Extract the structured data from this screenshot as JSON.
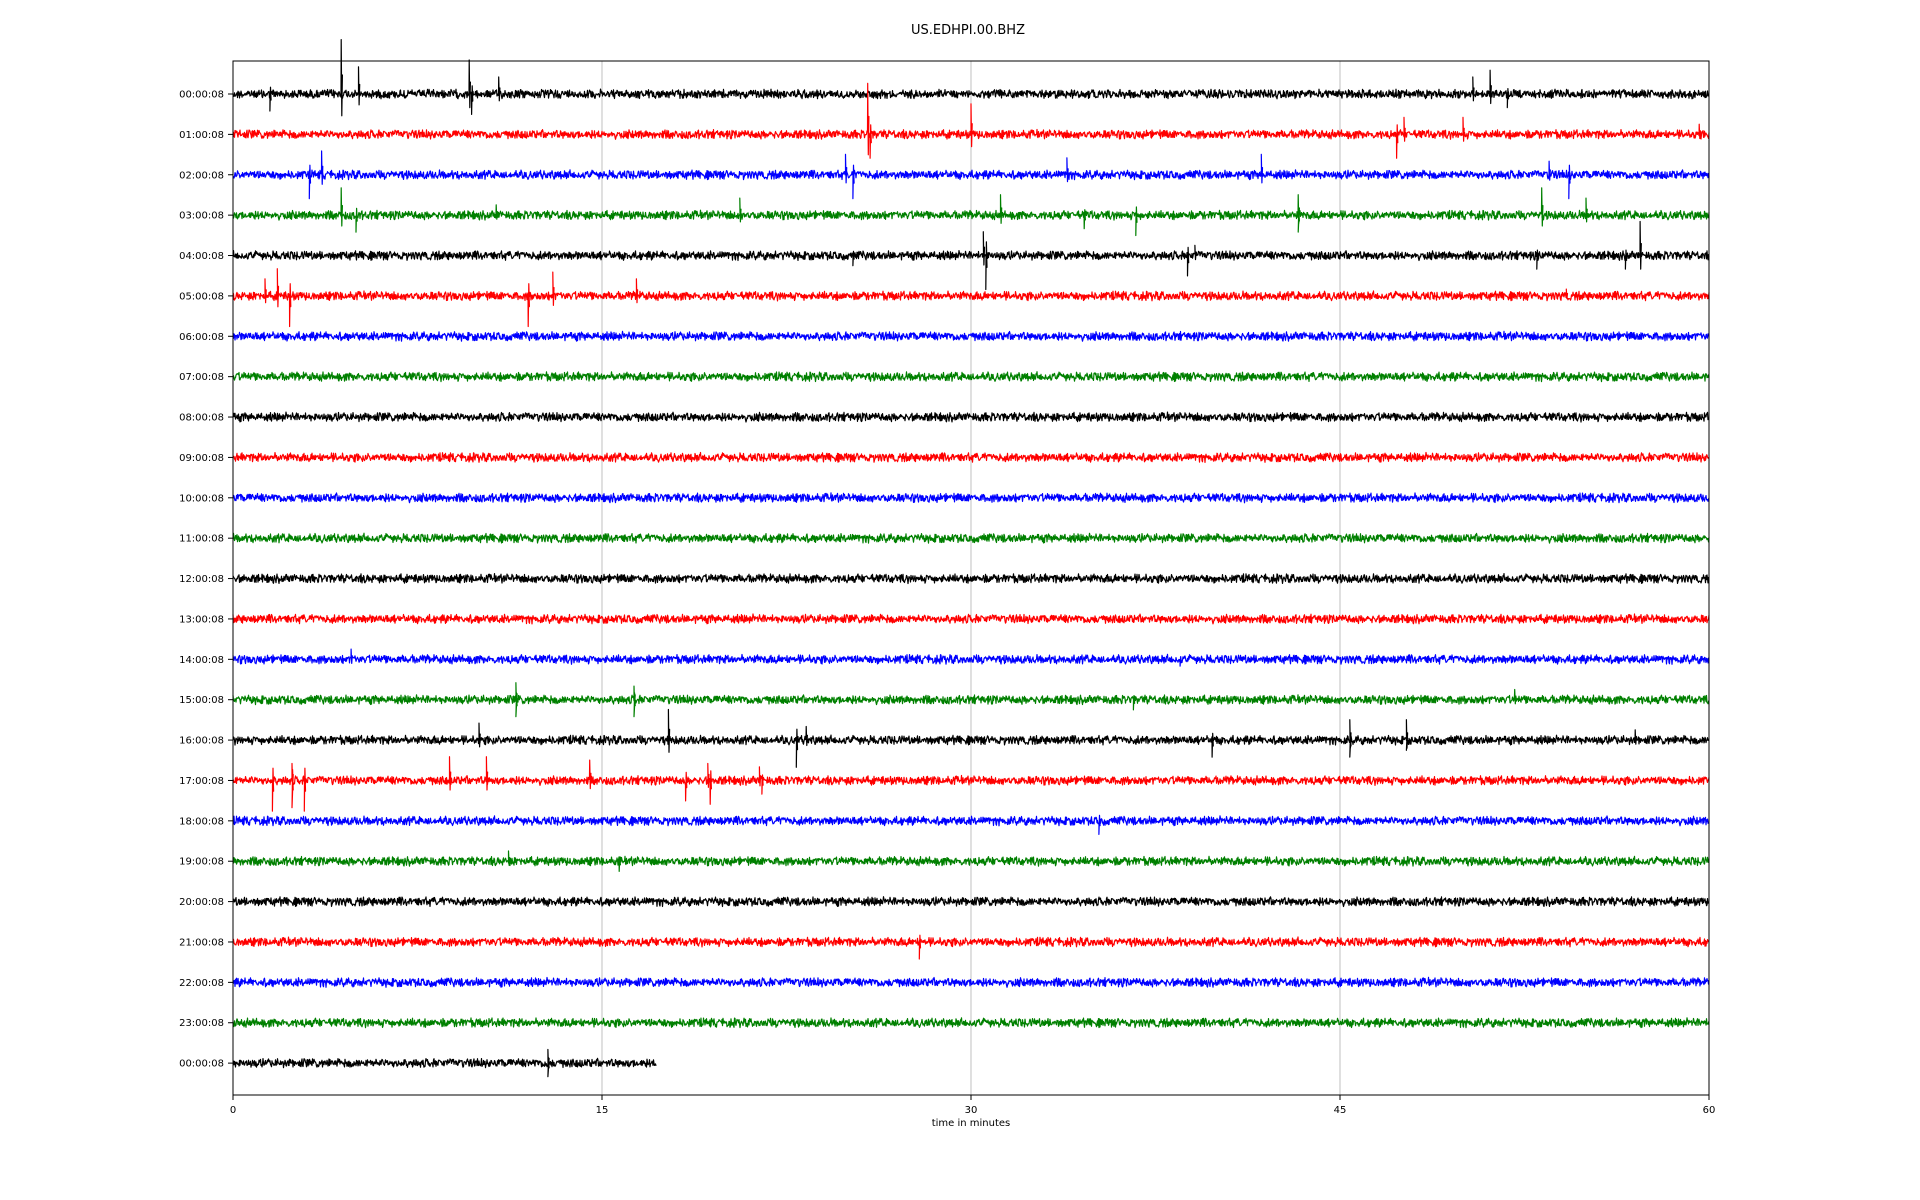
{
  "chart_data": {
    "type": "line",
    "title": "US.EDHPI.00.BHZ",
    "xlabel": "time in minutes",
    "ylabel": "",
    "xlim": [
      0,
      60
    ],
    "x_ticks": [
      "0",
      "15",
      "30",
      "45",
      "60"
    ],
    "x_tick_values": [
      0,
      15,
      30,
      45,
      60
    ],
    "grid": "vertical",
    "colors": [
      "#000000",
      "#ff0000",
      "#0000ff",
      "#008000"
    ],
    "series": [
      {
        "label": "00:00:08",
        "color": "#000000",
        "end_minute": 60,
        "events": [
          [
            1.5,
            -0.5
          ],
          [
            4.4,
            1.6
          ],
          [
            5.1,
            0.8
          ],
          [
            9.6,
            1.0
          ],
          [
            9.7,
            -0.6
          ],
          [
            10.8,
            0.5
          ],
          [
            50.4,
            0.5
          ],
          [
            51.1,
            0.7
          ],
          [
            51.8,
            -0.4
          ]
        ]
      },
      {
        "label": "01:00:08",
        "color": "#ff0000",
        "end_minute": 60,
        "events": [
          [
            25.8,
            1.5
          ],
          [
            25.9,
            -0.7
          ],
          [
            30.0,
            0.9
          ],
          [
            47.3,
            -0.7
          ],
          [
            47.6,
            0.5
          ],
          [
            50.0,
            0.5
          ],
          [
            59.6,
            0.3
          ]
        ]
      },
      {
        "label": "02:00:08",
        "color": "#0000ff",
        "end_minute": 60,
        "events": [
          [
            3.1,
            -0.7
          ],
          [
            3.6,
            0.7
          ],
          [
            24.9,
            0.6
          ],
          [
            25.2,
            -0.7
          ],
          [
            33.9,
            0.5
          ],
          [
            41.8,
            0.6
          ],
          [
            53.5,
            0.4
          ],
          [
            54.3,
            -0.7
          ]
        ]
      },
      {
        "label": "03:00:08",
        "color": "#008000",
        "end_minute": 60,
        "events": [
          [
            4.4,
            0.8
          ],
          [
            5.0,
            -0.5
          ],
          [
            10.7,
            0.3
          ],
          [
            20.6,
            0.5
          ],
          [
            31.2,
            0.6
          ],
          [
            34.6,
            -0.4
          ],
          [
            36.7,
            -0.6
          ],
          [
            43.3,
            0.6
          ],
          [
            43.3,
            -0.5
          ],
          [
            53.2,
            0.8
          ],
          [
            55.0,
            0.5
          ]
        ]
      },
      {
        "label": "04:00:08",
        "color": "#000000",
        "end_minute": 60,
        "events": [
          [
            25.2,
            -0.3
          ],
          [
            30.5,
            0.7
          ],
          [
            30.6,
            -1.0
          ],
          [
            38.8,
            -0.6
          ],
          [
            39.1,
            0.3
          ],
          [
            53.0,
            -0.4
          ],
          [
            56.6,
            -0.4
          ],
          [
            57.2,
            1.0
          ]
        ]
      },
      {
        "label": "05:00:08",
        "color": "#ff0000",
        "end_minute": 60,
        "events": [
          [
            1.3,
            0.5
          ],
          [
            1.8,
            0.8
          ],
          [
            2.3,
            -0.9
          ],
          [
            12.0,
            -0.9
          ],
          [
            13.0,
            0.7
          ],
          [
            16.4,
            0.5
          ],
          [
            54.2,
            0.2
          ]
        ]
      },
      {
        "label": "06:00:08",
        "color": "#0000ff",
        "end_minute": 60,
        "events": []
      },
      {
        "label": "07:00:08",
        "color": "#008000",
        "end_minute": 60,
        "events": []
      },
      {
        "label": "08:00:08",
        "color": "#000000",
        "end_minute": 60,
        "events": []
      },
      {
        "label": "09:00:08",
        "color": "#ff0000",
        "end_minute": 60,
        "events": []
      },
      {
        "label": "10:00:08",
        "color": "#0000ff",
        "end_minute": 60,
        "events": []
      },
      {
        "label": "11:00:08",
        "color": "#008000",
        "end_minute": 60,
        "events": []
      },
      {
        "label": "12:00:08",
        "color": "#000000",
        "end_minute": 60,
        "events": []
      },
      {
        "label": "13:00:08",
        "color": "#ff0000",
        "end_minute": 60,
        "events": []
      },
      {
        "label": "14:00:08",
        "color": "#0000ff",
        "end_minute": 60,
        "events": [
          [
            4.8,
            0.3
          ],
          [
            38.5,
            -0.2
          ]
        ]
      },
      {
        "label": "15:00:08",
        "color": "#008000",
        "end_minute": 60,
        "events": [
          [
            11.5,
            0.5
          ],
          [
            11.5,
            -0.5
          ],
          [
            16.3,
            0.4
          ],
          [
            16.3,
            -0.5
          ],
          [
            36.6,
            -0.3
          ],
          [
            52.1,
            0.3
          ]
        ]
      },
      {
        "label": "16:00:08",
        "color": "#000000",
        "end_minute": 60,
        "events": [
          [
            10.0,
            0.5
          ],
          [
            17.7,
            0.9
          ],
          [
            22.9,
            -0.8
          ],
          [
            23.3,
            0.4
          ],
          [
            39.8,
            -0.5
          ],
          [
            45.4,
            0.6
          ],
          [
            45.4,
            -0.5
          ],
          [
            47.7,
            0.6
          ],
          [
            47.7,
            -0.3
          ],
          [
            57.0,
            0.3
          ]
        ]
      },
      {
        "label": "17:00:08",
        "color": "#ff0000",
        "end_minute": 60,
        "events": [
          [
            1.6,
            -0.9
          ],
          [
            2.4,
            0.5
          ],
          [
            2.4,
            -0.8
          ],
          [
            2.9,
            -0.9
          ],
          [
            8.8,
            0.7
          ],
          [
            10.3,
            0.7
          ],
          [
            14.5,
            0.6
          ],
          [
            18.4,
            -0.6
          ],
          [
            19.3,
            0.5
          ],
          [
            19.4,
            -0.7
          ],
          [
            21.4,
            0.4
          ],
          [
            21.5,
            -0.4
          ]
        ]
      },
      {
        "label": "18:00:08",
        "color": "#0000ff",
        "end_minute": 60,
        "events": [
          [
            35.2,
            -0.4
          ]
        ]
      },
      {
        "label": "19:00:08",
        "color": "#008000",
        "end_minute": 60,
        "events": [
          [
            11.2,
            0.3
          ],
          [
            15.7,
            -0.3
          ]
        ]
      },
      {
        "label": "20:00:08",
        "color": "#000000",
        "end_minute": 60,
        "events": []
      },
      {
        "label": "21:00:08",
        "color": "#ff0000",
        "end_minute": 60,
        "events": [
          [
            27.9,
            -0.5
          ]
        ]
      },
      {
        "label": "22:00:08",
        "color": "#0000ff",
        "end_minute": 60,
        "events": []
      },
      {
        "label": "23:00:08",
        "color": "#008000",
        "end_minute": 60,
        "events": []
      },
      {
        "label": "00:00:08",
        "color": "#000000",
        "end_minute": 17.2,
        "events": [
          [
            12.8,
            0.4
          ],
          [
            12.8,
            -0.4
          ]
        ]
      }
    ]
  }
}
